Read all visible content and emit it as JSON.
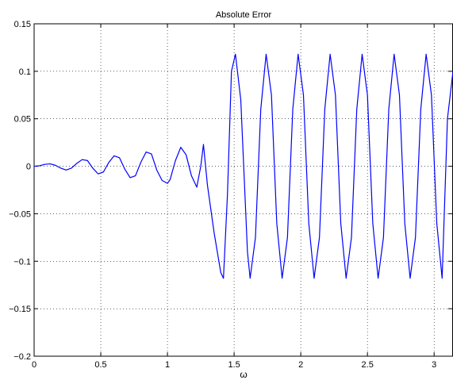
{
  "chart_data": {
    "type": "line",
    "title": "Absolute Error",
    "xlabel": "ω",
    "ylabel": "",
    "xlim": [
      0,
      3.1416
    ],
    "ylim": [
      -0.2,
      0.15
    ],
    "xticks": [
      0,
      0.5,
      1,
      1.5,
      2,
      2.5,
      3
    ],
    "xtick_labels": [
      "0",
      "0.5",
      "1",
      "1.5",
      "2",
      "2.5",
      "3"
    ],
    "yticks": [
      -0.2,
      -0.15,
      -0.1,
      -0.05,
      0,
      0.05,
      0.1,
      0.15
    ],
    "ytick_labels": [
      "−0.2",
      "−0.15",
      "−0.1",
      "−0.05",
      "0",
      "0.05",
      "0.1",
      "0.15"
    ],
    "grid": true,
    "line_color": "#0000ff",
    "series": [
      {
        "x": [
          0,
          0.04,
          0.08,
          0.12,
          0.16,
          0.2,
          0.24,
          0.28,
          0.32,
          0.36,
          0.4,
          0.44,
          0.48,
          0.52,
          0.56,
          0.6,
          0.64,
          0.68,
          0.72,
          0.76,
          0.8,
          0.84,
          0.88,
          0.92,
          0.96,
          1.0,
          1.02,
          1.06,
          1.1,
          1.14,
          1.18,
          1.22,
          1.25,
          1.27,
          1.3,
          1.35,
          1.4,
          1.42,
          1.45,
          1.48,
          1.51,
          1.55,
          1.6,
          1.62,
          1.66,
          1.7,
          1.74,
          1.78,
          1.82,
          1.86,
          1.9,
          1.94,
          1.98,
          2.02,
          2.06,
          2.1,
          2.14,
          2.18,
          2.22,
          2.26,
          2.3,
          2.34,
          2.38,
          2.42,
          2.46,
          2.5,
          2.54,
          2.58,
          2.62,
          2.66,
          2.7,
          2.74,
          2.78,
          2.82,
          2.86,
          2.9,
          2.94,
          2.98,
          3.02,
          3.06,
          3.1,
          3.1416
        ],
        "y": [
          0,
          0.0005,
          0.002,
          0.0025,
          0.001,
          -0.002,
          -0.004,
          -0.002,
          0.003,
          0.007,
          0.006,
          -0.002,
          -0.008,
          -0.006,
          0.004,
          0.011,
          0.009,
          -0.003,
          -0.012,
          -0.01,
          0.004,
          0.015,
          0.013,
          -0.004,
          -0.015,
          -0.018,
          -0.014,
          0.006,
          0.02,
          0.012,
          -0.01,
          -0.022,
          0.0,
          0.023,
          -0.02,
          -0.07,
          -0.112,
          -0.118,
          -0.03,
          0.1,
          0.118,
          0.07,
          -0.09,
          -0.118,
          -0.075,
          0.06,
          0.118,
          0.075,
          -0.06,
          -0.118,
          -0.075,
          0.06,
          0.118,
          0.075,
          -0.06,
          -0.118,
          -0.075,
          0.06,
          0.118,
          0.075,
          -0.06,
          -0.118,
          -0.075,
          0.06,
          0.118,
          0.075,
          -0.06,
          -0.118,
          -0.075,
          0.06,
          0.118,
          0.075,
          -0.06,
          -0.118,
          -0.075,
          0.06,
          0.118,
          0.075,
          -0.06,
          -0.118,
          0.05,
          0.1
        ]
      }
    ]
  }
}
